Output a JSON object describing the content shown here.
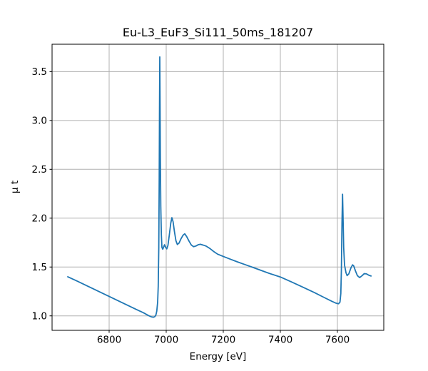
{
  "figure": {
    "background": "#ffffff"
  },
  "chart_data": {
    "type": "line",
    "title": "Eu-L3_EuF3_Si111_50ms_181207",
    "xlabel": "Energy [eV]",
    "ylabel": "μ t",
    "xlim": [
      6600,
      7762.5
    ],
    "ylim": [
      0.852,
      3.78
    ],
    "x_ticks": {
      "values": [
        6800,
        7000,
        7200,
        7400,
        7600
      ],
      "labels": [
        "6800",
        "7000",
        "7200",
        "7400",
        "7600"
      ]
    },
    "y_ticks": {
      "values": [
        1.0,
        1.5,
        2.0,
        2.5,
        3.0,
        3.5
      ],
      "labels": [
        "1.0",
        "1.5",
        "2.0",
        "2.5",
        "3.0",
        "3.5"
      ]
    },
    "grid": "on",
    "legend": "none",
    "colors": {
      "line": "#1f77b4",
      "grid": "#b0b0b0",
      "spine": "#000000",
      "text": "#000000",
      "background": "#ffffff"
    },
    "series": [
      {
        "name": "mu_t",
        "points": [
          [
            6655,
            1.4
          ],
          [
            6685,
            1.36
          ],
          [
            6715,
            1.318
          ],
          [
            6745,
            1.276
          ],
          [
            6775,
            1.234
          ],
          [
            6805,
            1.192
          ],
          [
            6835,
            1.15
          ],
          [
            6865,
            1.108
          ],
          [
            6895,
            1.066
          ],
          [
            6920,
            1.032
          ],
          [
            6938,
            1.003
          ],
          [
            6948,
            0.99
          ],
          [
            6955,
            0.986
          ],
          [
            6960,
            0.992
          ],
          [
            6964,
            1.01
          ],
          [
            6967,
            1.05
          ],
          [
            6970,
            1.14
          ],
          [
            6972,
            1.3
          ],
          [
            6974,
            1.7
          ],
          [
            6975.5,
            2.4
          ],
          [
            6976.5,
            3.1
          ],
          [
            6977.5,
            3.65
          ],
          [
            6978.5,
            3.17
          ],
          [
            6979.5,
            2.62
          ],
          [
            6981,
            2.12
          ],
          [
            6983,
            1.83
          ],
          [
            6985,
            1.7
          ],
          [
            6988,
            1.682
          ],
          [
            6991,
            1.705
          ],
          [
            6994,
            1.728
          ],
          [
            6998,
            1.7
          ],
          [
            7002,
            1.686
          ],
          [
            7006,
            1.72
          ],
          [
            7011,
            1.83
          ],
          [
            7016,
            1.95
          ],
          [
            7020,
            2.005
          ],
          [
            7024,
            1.965
          ],
          [
            7029,
            1.86
          ],
          [
            7034,
            1.77
          ],
          [
            7039,
            1.73
          ],
          [
            7045,
            1.745
          ],
          [
            7052,
            1.79
          ],
          [
            7059,
            1.825
          ],
          [
            7065,
            1.84
          ],
          [
            7072,
            1.81
          ],
          [
            7080,
            1.765
          ],
          [
            7088,
            1.725
          ],
          [
            7096,
            1.708
          ],
          [
            7104,
            1.715
          ],
          [
            7112,
            1.728
          ],
          [
            7120,
            1.733
          ],
          [
            7130,
            1.724
          ],
          [
            7140,
            1.714
          ],
          [
            7152,
            1.692
          ],
          [
            7165,
            1.662
          ],
          [
            7180,
            1.632
          ],
          [
            7200,
            1.608
          ],
          [
            7225,
            1.58
          ],
          [
            7250,
            1.552
          ],
          [
            7275,
            1.526
          ],
          [
            7300,
            1.5
          ],
          [
            7330,
            1.468
          ],
          [
            7360,
            1.436
          ],
          [
            7400,
            1.398
          ],
          [
            7440,
            1.346
          ],
          [
            7480,
            1.292
          ],
          [
            7520,
            1.238
          ],
          [
            7555,
            1.186
          ],
          [
            7580,
            1.15
          ],
          [
            7595,
            1.13
          ],
          [
            7604,
            1.124
          ],
          [
            7609,
            1.14
          ],
          [
            7612,
            1.23
          ],
          [
            7614,
            1.48
          ],
          [
            7616,
            1.95
          ],
          [
            7618,
            2.245
          ],
          [
            7620,
            1.98
          ],
          [
            7622,
            1.7
          ],
          [
            7625,
            1.52
          ],
          [
            7630,
            1.442
          ],
          [
            7634,
            1.412
          ],
          [
            7640,
            1.43
          ],
          [
            7647,
            1.488
          ],
          [
            7653,
            1.522
          ],
          [
            7657,
            1.512
          ],
          [
            7663,
            1.462
          ],
          [
            7670,
            1.412
          ],
          [
            7678,
            1.392
          ],
          [
            7686,
            1.41
          ],
          [
            7694,
            1.432
          ],
          [
            7702,
            1.43
          ],
          [
            7710,
            1.416
          ],
          [
            7718,
            1.408
          ]
        ]
      }
    ]
  }
}
